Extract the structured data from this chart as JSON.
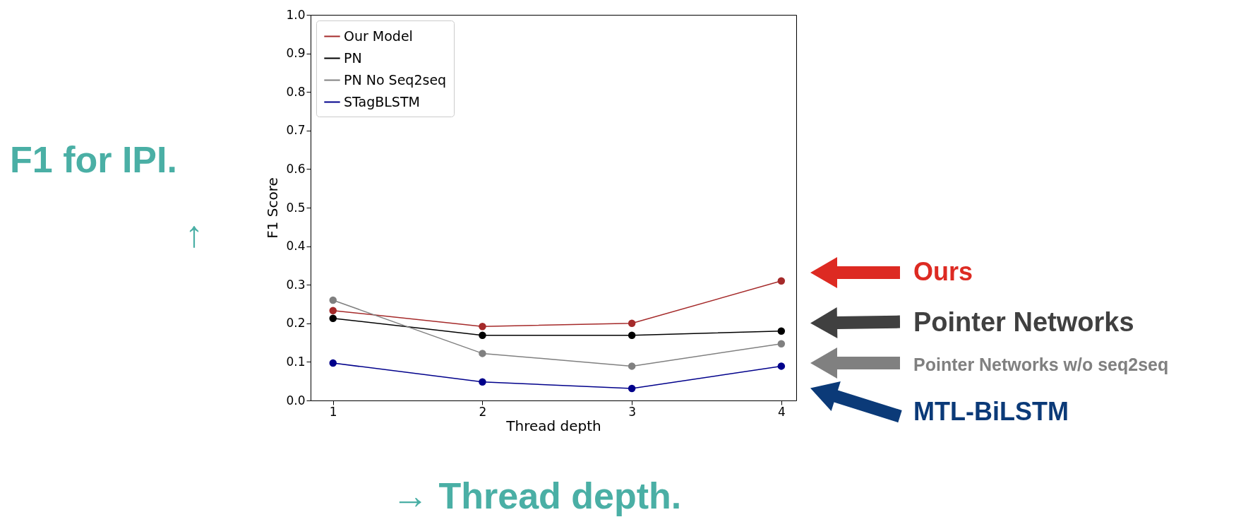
{
  "chart_data": {
    "type": "line",
    "xlabel": "Thread depth",
    "ylabel": "F1 Score",
    "x": [
      1,
      2,
      3,
      4
    ],
    "series": [
      {
        "name": "Our Model",
        "color": "#a52a2a",
        "values": [
          0.233,
          0.192,
          0.2,
          0.31
        ]
      },
      {
        "name": "PN",
        "color": "#000000",
        "values": [
          0.213,
          0.169,
          0.169,
          0.18
        ]
      },
      {
        "name": "PN No Seq2seq",
        "color": "#808080",
        "values": [
          0.26,
          0.122,
          0.089,
          0.147
        ]
      },
      {
        "name": "STagBLSTM",
        "color": "#00008b",
        "values": [
          0.097,
          0.048,
          0.031,
          0.089
        ]
      }
    ],
    "xlim": [
      0.85,
      4.1
    ],
    "xticks": [
      1,
      2,
      3,
      4
    ],
    "ylim": [
      0,
      1
    ],
    "yticks": [
      {
        "value": 0,
        "label": "0.0"
      },
      {
        "value": 0.1,
        "label": "0.1"
      },
      {
        "value": 0.2,
        "label": "0.2"
      },
      {
        "value": 0.3,
        "label": "0.3"
      },
      {
        "value": 0.4,
        "label": "0.4"
      },
      {
        "value": 0.5,
        "label": "0.5"
      },
      {
        "value": 0.6,
        "label": "0.6"
      },
      {
        "value": 0.7,
        "label": "0.7"
      },
      {
        "value": 0.8,
        "label": "0.8"
      },
      {
        "value": 0.9,
        "label": "0.9"
      },
      {
        "value": 1,
        "label": "1.0"
      }
    ],
    "grid": false,
    "legend": "top left",
    "marker": "circle",
    "line_style": "solid",
    "annotations": [
      "F1 for IPI.",
      "↑",
      "→ Thread depth.",
      "Ours",
      "Pointer Networks",
      "Pointer Networks w/o seq2seq",
      "MTL-BiLSTM"
    ]
  }
}
